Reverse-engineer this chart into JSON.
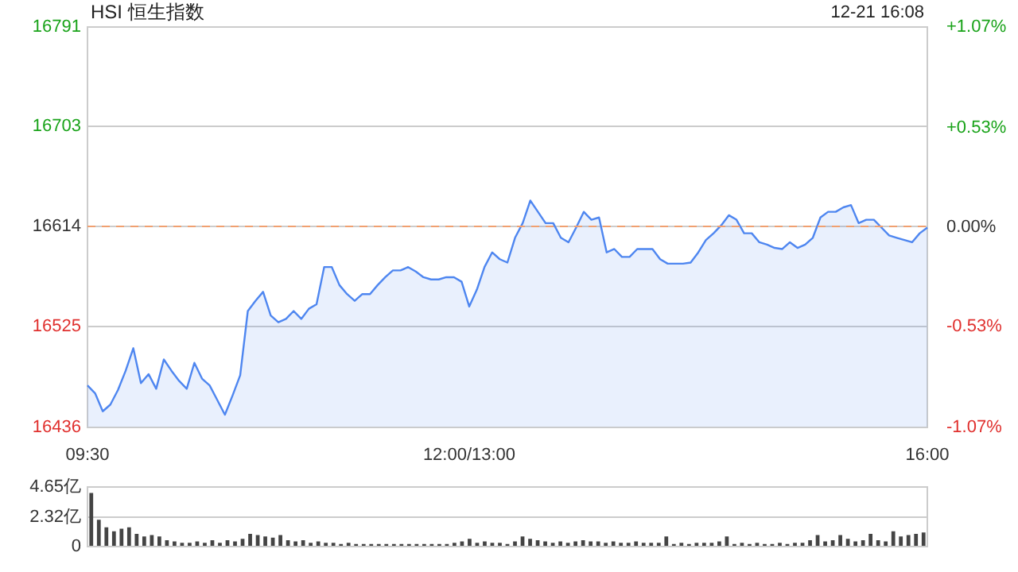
{
  "chart_data": [
    {
      "type": "area",
      "title": "HSI 恒生指数",
      "annotations": [
        "12-21 16:08"
      ],
      "categories": [
        "09:30",
        null,
        null,
        null,
        null,
        null,
        null,
        null,
        null,
        null,
        null,
        null,
        null,
        null,
        null,
        null,
        null,
        null,
        null,
        null,
        null,
        null,
        null,
        null,
        null,
        null,
        null,
        null,
        null,
        null,
        null,
        null,
        null,
        null,
        null,
        null,
        null,
        null,
        null,
        null,
        null,
        null,
        null,
        null,
        null,
        null,
        null,
        null,
        null,
        null,
        "12:00/13:00",
        null,
        null,
        null,
        null,
        null,
        null,
        null,
        null,
        null,
        null,
        null,
        null,
        null,
        null,
        null,
        null,
        null,
        null,
        null,
        null,
        null,
        null,
        null,
        null,
        null,
        null,
        null,
        null,
        null,
        null,
        null,
        null,
        null,
        null,
        null,
        null,
        null,
        null,
        null,
        null,
        null,
        null,
        null,
        null,
        null,
        null,
        null,
        null,
        null,
        null,
        null,
        null,
        null,
        null,
        null,
        null,
        null,
        null,
        null,
        "16:00"
      ],
      "series": [
        {
          "color": "#4e86f0",
          "values": [
            16473,
            16466,
            16450,
            16456,
            16469,
            16486,
            16506,
            16475,
            16483,
            16470,
            16496,
            16486,
            16477,
            16470,
            16493,
            16479,
            16473,
            16460,
            16447,
            16464,
            16482,
            16539,
            16548,
            16556,
            16535,
            16529,
            16532,
            16539,
            16532,
            16541,
            16545,
            16578,
            16578,
            16562,
            16554,
            16548,
            16554,
            16554,
            16562,
            16569,
            16575,
            16575,
            16578,
            16574,
            16569,
            16567,
            16567,
            16569,
            16569,
            16565,
            16543,
            16558,
            16578,
            16591,
            16585,
            16582,
            16604,
            16617,
            16637,
            16627,
            16617,
            16617,
            16604,
            16600,
            16613,
            16627,
            16620,
            16622,
            16591,
            16594,
            16587,
            16587,
            16594,
            16594,
            16594,
            16585,
            16581,
            16581,
            16581,
            16582,
            16591,
            16602,
            16608,
            16615,
            16624,
            16620,
            16608,
            16608,
            16600,
            16598,
            16595,
            16594,
            16600,
            16595,
            16598,
            16604,
            16622,
            16627,
            16627,
            16631,
            16633,
            16617,
            16620,
            16620,
            16613,
            16606,
            16604,
            16602,
            16600,
            16608,
            16613
          ]
        }
      ],
      "ylim": [
        16436,
        16791
      ],
      "yticks": [
        16436,
        16525,
        16614,
        16703,
        16791
      ],
      "y2lim": [
        -1.07,
        1.07
      ],
      "y2ticks": [
        {
          "value": -1.07,
          "label": "-1.07%"
        },
        {
          "value": -0.53,
          "label": "-0.53%"
        },
        {
          "value": 0,
          "label": "0.00%"
        },
        {
          "value": 0.53,
          "label": "+0.53%"
        },
        {
          "value": 1.07,
          "label": "+1.07%"
        }
      ],
      "ref_lines": [
        {
          "axis": "y",
          "value": 16614,
          "color": "#f0a070",
          "line_style": "dashed"
        }
      ],
      "grid": "y"
    },
    {
      "type": "bar",
      "tick_labels": "y",
      "categories": [
        null,
        null,
        null,
        null,
        null,
        null,
        null,
        null,
        null,
        null,
        null,
        null,
        null,
        null,
        null,
        null,
        null,
        null,
        null,
        null,
        null,
        null,
        null,
        null,
        null,
        null,
        null,
        null,
        null,
        null,
        null,
        null,
        null,
        null,
        null,
        null,
        null,
        null,
        null,
        null,
        null,
        null,
        null,
        null,
        null,
        null,
        null,
        null,
        null,
        null,
        null,
        null,
        null,
        null,
        null,
        null,
        null,
        null,
        null,
        null,
        null,
        null,
        null,
        null,
        null,
        null,
        null,
        null,
        null,
        null,
        null,
        null,
        null,
        null,
        null,
        null,
        null,
        null,
        null,
        null,
        null,
        null,
        null,
        null,
        null,
        null,
        null,
        null,
        null,
        null,
        null,
        null,
        null,
        null,
        null,
        null,
        null,
        null,
        null,
        null,
        null,
        null,
        null,
        null,
        null,
        null,
        null,
        null,
        null,
        null,
        null
      ],
      "series": [
        {
          "color": "#444444",
          "values": [
            4.2,
            2.1,
            1.5,
            1.2,
            1.4,
            1.5,
            1.0,
            0.8,
            0.9,
            0.8,
            0.5,
            0.4,
            0.3,
            0.3,
            0.4,
            0.3,
            0.5,
            0.3,
            0.5,
            0.4,
            0.6,
            1.0,
            0.9,
            0.8,
            0.7,
            0.9,
            0.5,
            0.4,
            0.5,
            0.3,
            0.4,
            0.3,
            0.3,
            0.2,
            0.3,
            0.2,
            0.2,
            0.2,
            0.2,
            0.2,
            0.2,
            0.2,
            0.2,
            0.2,
            0.2,
            0.2,
            0.2,
            0.2,
            0.3,
            0.4,
            0.6,
            0.3,
            0.4,
            0.3,
            0.3,
            0.2,
            0.4,
            0.8,
            0.6,
            0.5,
            0.4,
            0.3,
            0.4,
            0.3,
            0.4,
            0.5,
            0.4,
            0.4,
            0.3,
            0.4,
            0.3,
            0.3,
            0.4,
            0.3,
            0.3,
            0.3,
            0.8,
            0.2,
            0.3,
            0.2,
            0.3,
            0.3,
            0.3,
            0.4,
            0.8,
            0.2,
            0.3,
            0.2,
            0.3,
            0.2,
            0.2,
            0.3,
            0.2,
            0.3,
            0.3,
            0.5,
            0.9,
            0.4,
            0.5,
            0.9,
            0.6,
            0.4,
            0.5,
            1.0,
            0.5,
            0.4,
            1.2,
            0.8,
            0.9,
            1.0,
            1.1
          ]
        }
      ],
      "ylim": [
        0,
        4.65
      ],
      "yticks": [
        0,
        {
          "value": 2.32,
          "label": "2.32亿"
        },
        {
          "value": 4.65,
          "label": "4.65亿"
        }
      ],
      "grid": "y"
    }
  ]
}
